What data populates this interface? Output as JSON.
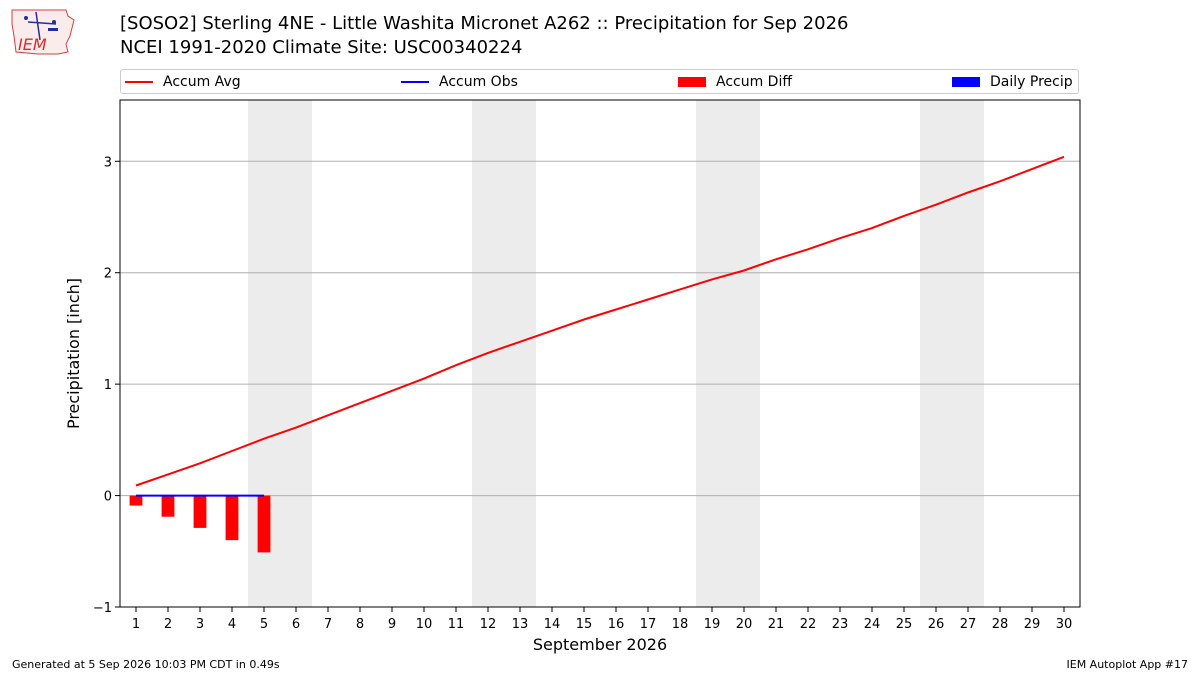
{
  "header": {
    "title_line1": "[SOSO2] Sterling 4NE - Little Washita Micronet A262 :: Precipitation for Sep 2026",
    "title_line2": "NCEI 1991-2020 Climate Site: USC00340224",
    "logo_text": "IEM"
  },
  "footer": {
    "left": "Generated at 5 Sep 2026 10:03 PM CDT in 0.49s",
    "right": "IEM Autoplot App #17"
  },
  "legend": [
    {
      "label": "Accum Avg",
      "color": "#ff0000",
      "kind": "line"
    },
    {
      "label": "Accum Obs",
      "color": "#0000ff",
      "kind": "line"
    },
    {
      "label": "Accum Diff",
      "color": "#ff0000",
      "kind": "box"
    },
    {
      "label": "Daily Precip",
      "color": "#0000ff",
      "kind": "box"
    }
  ],
  "chart_data": {
    "type": "line",
    "xlabel": "September 2026",
    "ylabel": "Precipitation [inch]",
    "xlim": [
      0.5,
      30.5
    ],
    "ylim": [
      -1.0,
      3.55
    ],
    "yticks": [
      -1,
      0,
      1,
      2,
      3
    ],
    "ytick_labels": [
      "−1",
      "0",
      "1",
      "2",
      "3"
    ],
    "xticks": [
      1,
      2,
      3,
      4,
      5,
      6,
      7,
      8,
      9,
      10,
      11,
      12,
      13,
      14,
      15,
      16,
      17,
      18,
      19,
      20,
      21,
      22,
      23,
      24,
      25,
      26,
      27,
      28,
      29,
      30
    ],
    "grid": "horizontal",
    "weekend_shading": [
      [
        4.5,
        6.5
      ],
      [
        11.5,
        13.5
      ],
      [
        18.5,
        20.5
      ],
      [
        25.5,
        27.5
      ]
    ],
    "shading_color": "#ececec",
    "series": [
      {
        "name": "Accum Avg",
        "type": "line",
        "color": "#ff0000",
        "x": [
          1,
          2,
          3,
          4,
          5,
          6,
          7,
          8,
          9,
          10,
          11,
          12,
          13,
          14,
          15,
          16,
          17,
          18,
          19,
          20,
          21,
          22,
          23,
          24,
          25,
          26,
          27,
          28,
          29,
          30
        ],
        "values": [
          0.09,
          0.19,
          0.29,
          0.4,
          0.51,
          0.61,
          0.72,
          0.83,
          0.94,
          1.05,
          1.17,
          1.28,
          1.38,
          1.48,
          1.58,
          1.67,
          1.76,
          1.85,
          1.94,
          2.02,
          2.12,
          2.21,
          2.31,
          2.4,
          2.51,
          2.61,
          2.72,
          2.82,
          2.93,
          3.04
        ]
      },
      {
        "name": "Accum Obs",
        "type": "line",
        "color": "#0000ff",
        "x": [
          1,
          2,
          3,
          4,
          5
        ],
        "values": [
          0.0,
          0.0,
          0.0,
          0.0,
          0.0
        ]
      },
      {
        "name": "Accum Diff",
        "type": "bar",
        "color": "#ff0000",
        "x": [
          1,
          2,
          3,
          4,
          5
        ],
        "values": [
          -0.09,
          -0.19,
          -0.29,
          -0.4,
          -0.51
        ]
      },
      {
        "name": "Daily Precip",
        "type": "bar",
        "color": "#0000ff",
        "x": [
          1,
          2,
          3,
          4,
          5
        ],
        "values": [
          0,
          0,
          0,
          0,
          0
        ]
      }
    ]
  }
}
